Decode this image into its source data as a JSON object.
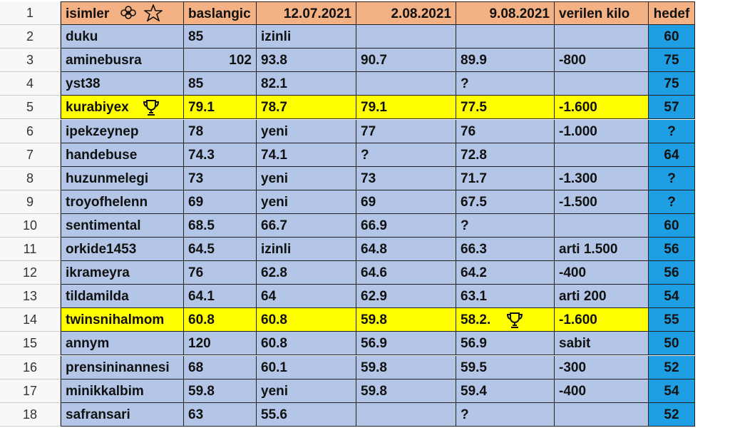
{
  "row_numbers": [
    1,
    2,
    3,
    4,
    5,
    6,
    7,
    8,
    9,
    10,
    11,
    12,
    13,
    14,
    15,
    16,
    17,
    18
  ],
  "table": {
    "header": [
      "isimler",
      "baslangic",
      "12.07.2021",
      "2.08.2021",
      "9.08.2021",
      "verilen kilo",
      "hedef"
    ],
    "rows": [
      [
        "duku",
        "85",
        "izinli",
        null,
        null,
        null,
        "60"
      ],
      [
        "aminebusra",
        "102",
        "93.8",
        "90.7",
        "89.9",
        "-800",
        "75"
      ],
      [
        "yst38",
        "85",
        "82.1",
        null,
        "?",
        null,
        "75"
      ],
      [
        "kurabiyex",
        "79.1",
        "78.7",
        "79.1",
        "77.5",
        "-1.600",
        "57"
      ],
      [
        "ipekzeynep",
        "78",
        "yeni",
        "77",
        "76",
        "-1.000",
        "?"
      ],
      [
        "handebuse",
        "74.3",
        "74.1",
        "?",
        "72.8",
        null,
        "64"
      ],
      [
        "huzunmelegi",
        "73",
        "yeni",
        "73",
        "71.7",
        "-1.300",
        "?"
      ],
      [
        "troyofhelenn",
        "69",
        "yeni",
        "69",
        "67.5",
        "-1.500",
        "?"
      ],
      [
        "sentimental",
        "68.5",
        "66.7",
        "66.9",
        "?",
        null,
        "60"
      ],
      [
        "orkide1453",
        "64.5",
        "izinli",
        "64.8",
        "66.3",
        "arti 1.500",
        "56"
      ],
      [
        "ikrameyra",
        "76",
        "62.8",
        "64.6",
        "64.2",
        "-400",
        "56"
      ],
      [
        "tildamilda",
        "64.1",
        "64",
        "62.9",
        "63.1",
        "arti 200",
        "54"
      ],
      [
        "twinsnihalmom",
        "60.8",
        "60.8",
        "59.8",
        "58.2.",
        "-1.600",
        "55"
      ],
      [
        "annym",
        "120",
        "60.8",
        "56.9",
        "56.9",
        "sabit",
        "50"
      ],
      [
        "prensininannesi",
        "68",
        "60.1",
        "59.8",
        "59.5",
        "-300",
        "52"
      ],
      [
        "minikkalbim",
        "59.8",
        "yeni",
        "59.8",
        "59.4",
        "-400",
        "54"
      ],
      [
        "safransari",
        "63",
        "55.6",
        null,
        "?",
        null,
        "52"
      ]
    ]
  }
}
